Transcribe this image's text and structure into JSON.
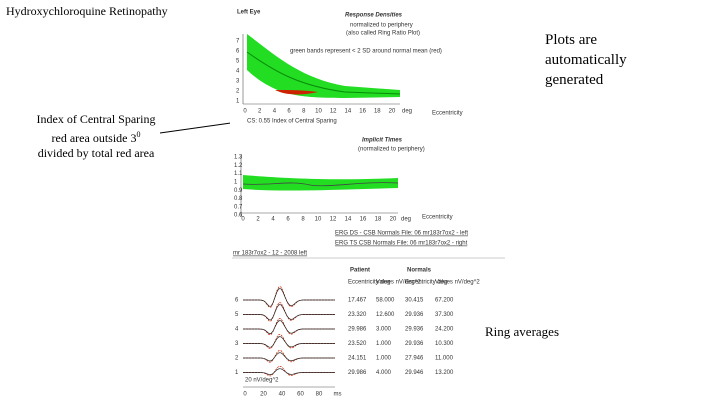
{
  "slide": {
    "title": "Hydroxychloroquine Retinopathy",
    "note_right": "Plots are automatically generated",
    "note_left": {
      "lines": [
        "Index of Central Sparing",
        "red area outside 3",
        "divided by total red area"
      ],
      "superscript": "0"
    },
    "note_bottom": "Ring averages"
  },
  "screenshot": {
    "eye": "Left Eye",
    "density_plot": {
      "title": "Response Densities",
      "subtitle": [
        "normalized to periphery",
        "(also called Ring Ratio Plot)"
      ],
      "legend": "green bands represent < 2 SD around normal mean (red)",
      "yticks": [
        "7",
        "6",
        "5",
        "4",
        "3",
        "2",
        "1"
      ],
      "xticks": [
        "0",
        "2",
        "4",
        "6",
        "8",
        "10",
        "12",
        "14",
        "16",
        "18",
        "20"
      ],
      "x_unit": "deg",
      "x_label": "Eccentricity",
      "footer": "CS: 0.55 Index of Central Sparing"
    },
    "implicit_plot": {
      "title": "Implicit Times",
      "subtitle": "(normalized to periphery)",
      "yticks": [
        "1.3",
        "1.2",
        "1.1",
        "1",
        "0.9",
        "0.8",
        "0.7",
        "0.6"
      ],
      "xticks": [
        "0",
        "2",
        "4",
        "6",
        "8",
        "10",
        "12",
        "14",
        "16",
        "18",
        "20"
      ],
      "x_unit": "deg",
      "x_label": "Eccentricity"
    },
    "links": [
      "ERG DS - CSB Normals File: 06 mr183r7ox2 - left",
      "ERG TS CSB Normals File: 06 mr183r7ox2 - right",
      "mr 183r7ox2 - 12 - 2008 left"
    ],
    "table": {
      "group_headers": [
        "Patient",
        "Normals"
      ],
      "headers": [
        "Eccentricity\ndeg",
        "Values\nnV/deg^2",
        "Eccentricity\ndeg",
        "Values\nnV/deg^2"
      ],
      "row_labels": [
        "6",
        "5",
        "4",
        "3",
        "2",
        "1"
      ],
      "rows": [
        [
          "17.467",
          "58.000",
          "30.415",
          "67.200"
        ],
        [
          "23.320",
          "12.600",
          "29.936",
          "37.300"
        ],
        [
          "29.986",
          "3.000",
          "29.936",
          "24.200"
        ],
        [
          "23.520",
          "1.000",
          "29.936",
          "10.300"
        ],
        [
          "24.151",
          "1.000",
          "27.946",
          "11.000"
        ],
        [
          "29.986",
          "4.000",
          "29.946",
          "13.200"
        ]
      ]
    },
    "trace_scale": "20 nV/deg^2",
    "trace_axis": [
      "0",
      "20",
      "40",
      "60",
      "80",
      "ms"
    ]
  }
}
